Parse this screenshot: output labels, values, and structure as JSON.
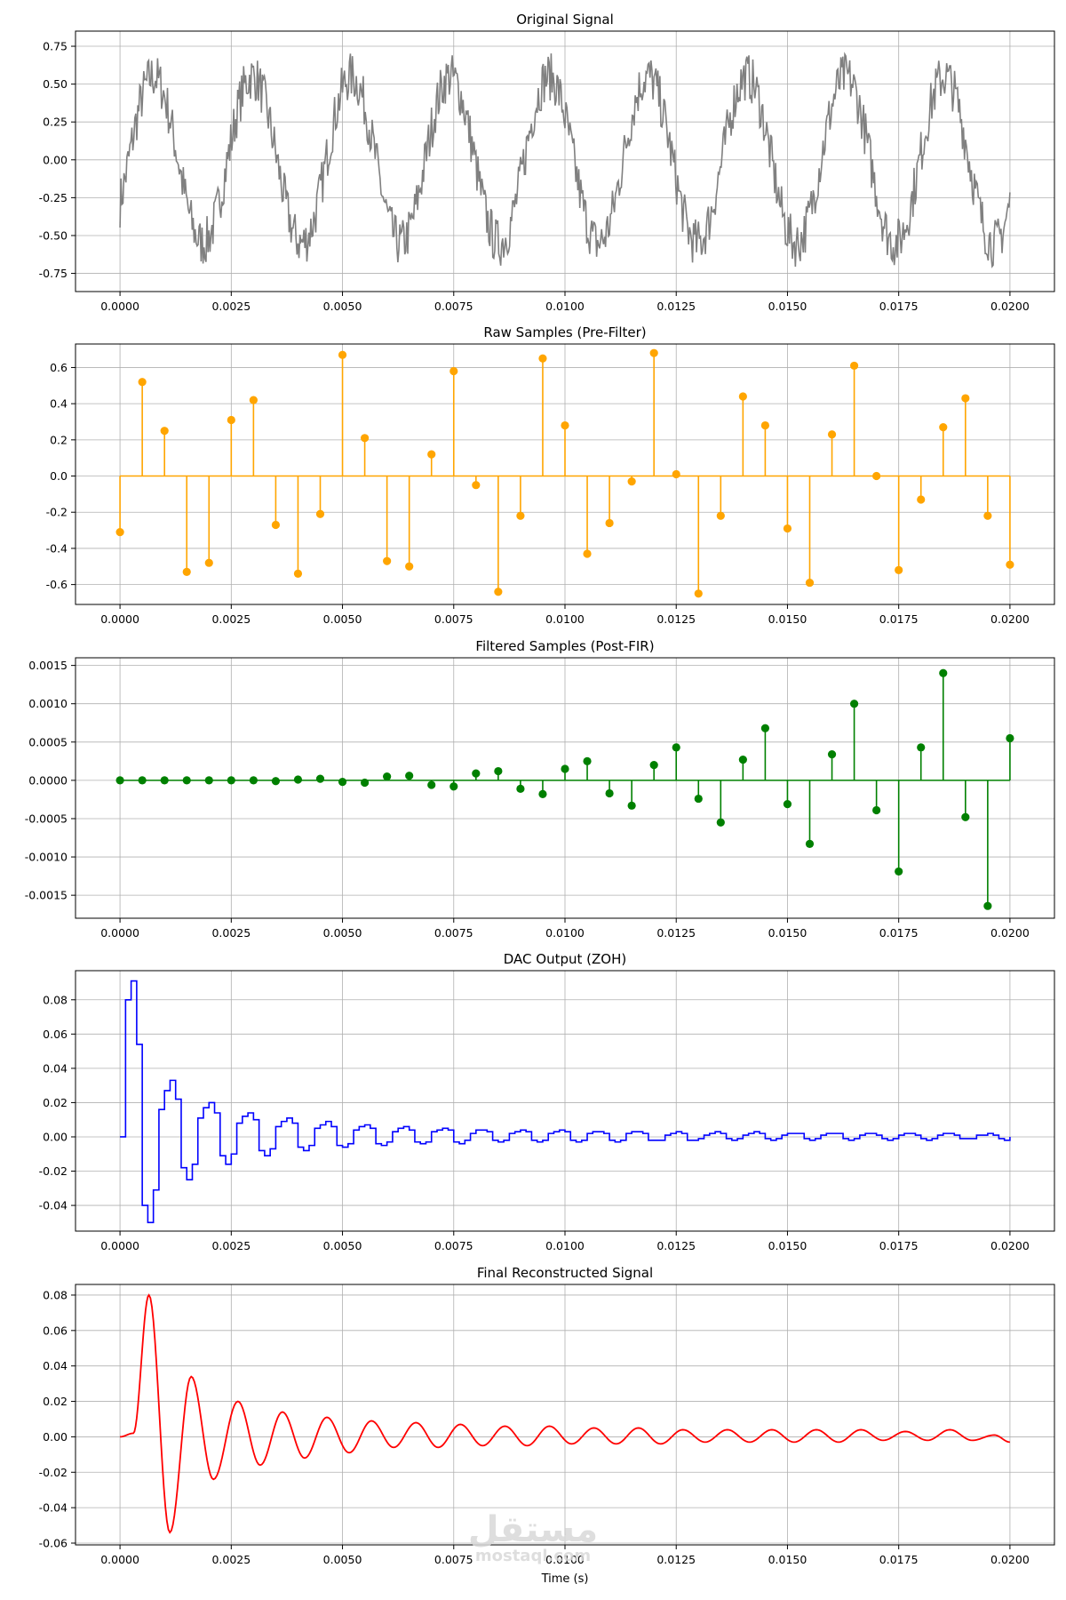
{
  "colors": {
    "original": "#808080",
    "raw": "#FFA500",
    "filtered": "#008000",
    "dac": "#0000FF",
    "reconstructed": "#FF0000",
    "grid": "#b0b0b0",
    "axes": "#000000"
  },
  "watermark": {
    "arabic": "مستقل",
    "latin": "mostaql.com"
  },
  "xlabel": "Time (s)",
  "chart_data": [
    {
      "title": "Original Signal",
      "type": "line",
      "color_key": "original",
      "xlim": [
        -0.001,
        0.021
      ],
      "ylim": [
        -0.87,
        0.85
      ],
      "yticks": [
        "0.75",
        "0.50",
        "0.25",
        "0.00",
        "-0.25",
        "-0.50",
        "-0.75"
      ],
      "xticks": [
        "0.0000",
        "0.0025",
        "0.0050",
        "0.0075",
        "0.0100",
        "0.0125",
        "0.0150",
        "0.0175",
        "0.0200"
      ],
      "grid": true,
      "signal": {
        "kind": "noisy-sine",
        "frequency_hz": 450,
        "amplitude": 0.55,
        "noise": 0.16,
        "t_start": 0,
        "t_end": 0.02
      }
    },
    {
      "title": "Raw Samples (Pre-Filter)",
      "type": "stem",
      "color_key": "raw",
      "xlim": [
        -0.001,
        0.021
      ],
      "ylim": [
        -0.71,
        0.73
      ],
      "yticks": [
        "0.6",
        "0.4",
        "0.2",
        "0.0",
        "-0.2",
        "-0.4",
        "-0.6"
      ],
      "xticks": [
        "0.0000",
        "0.0025",
        "0.0050",
        "0.0075",
        "0.0100",
        "0.0125",
        "0.0150",
        "0.0175",
        "0.0200"
      ],
      "grid": true,
      "x_step": 0.0005,
      "values": [
        -0.31,
        0.52,
        0.25,
        -0.53,
        -0.48,
        0.31,
        0.42,
        -0.27,
        -0.54,
        -0.21,
        0.67,
        0.21,
        -0.47,
        -0.5,
        0.12,
        0.58,
        -0.05,
        -0.64,
        -0.22,
        0.65,
        0.28,
        -0.43,
        -0.26,
        -0.03,
        0.68,
        0.01,
        -0.65,
        -0.22,
        0.44,
        0.28,
        -0.29,
        -0.59,
        0.23,
        0.61,
        0.0,
        -0.52,
        -0.13,
        0.27,
        0.43,
        -0.22,
        -0.49
      ]
    },
    {
      "title": "Filtered Samples (Post-FIR)",
      "type": "stem",
      "color_key": "filtered",
      "xlim": [
        -0.001,
        0.021
      ],
      "ylim": [
        -0.0018,
        0.0016
      ],
      "yticks": [
        "0.0015",
        "0.0010",
        "0.0005",
        "0.0000",
        "-0.0005",
        "-0.0010",
        "-0.0015"
      ],
      "xticks": [
        "0.0000",
        "0.0025",
        "0.0050",
        "0.0075",
        "0.0100",
        "0.0125",
        "0.0150",
        "0.0175",
        "0.0200"
      ],
      "grid": true,
      "x_step": 0.0005,
      "values": [
        0.0,
        0.0,
        0.0,
        0.0,
        0.0,
        0.0,
        0.0,
        -1e-05,
        1e-05,
        2e-05,
        -2e-05,
        -3e-05,
        5e-05,
        6e-05,
        -6e-05,
        -8e-05,
        9e-05,
        0.00012,
        -0.00011,
        -0.00018,
        0.00015,
        0.00025,
        -0.00017,
        -0.00033,
        0.0002,
        0.00043,
        -0.00024,
        -0.00055,
        0.00027,
        0.00068,
        -0.00031,
        -0.00083,
        0.00034,
        0.001,
        -0.00039,
        -0.00119,
        0.00043,
        0.0014,
        -0.00048,
        -0.00164,
        0.00055
      ]
    },
    {
      "title": "DAC Output (ZOH)",
      "type": "step",
      "color_key": "dac",
      "xlim": [
        -0.001,
        0.021
      ],
      "ylim": [
        -0.055,
        0.097
      ],
      "yticks": [
        "0.08",
        "0.06",
        "0.04",
        "0.02",
        "0.00",
        "-0.02",
        "-0.04"
      ],
      "xticks": [
        "0.0000",
        "0.0025",
        "0.0050",
        "0.0075",
        "0.0100",
        "0.0125",
        "0.0150",
        "0.0175",
        "0.0200"
      ],
      "grid": true,
      "x_step": 0.000125,
      "values": [
        0.0,
        0.08,
        0.091,
        0.054,
        -0.04,
        -0.05,
        -0.031,
        0.016,
        0.027,
        0.033,
        0.022,
        -0.018,
        -0.025,
        -0.016,
        0.011,
        0.017,
        0.02,
        0.014,
        -0.011,
        -0.016,
        -0.01,
        0.008,
        0.012,
        0.014,
        0.01,
        -0.008,
        -0.011,
        -0.007,
        0.006,
        0.009,
        0.011,
        0.008,
        -0.006,
        -0.008,
        -0.005,
        0.005,
        0.007,
        0.009,
        0.006,
        -0.005,
        -0.006,
        -0.004,
        0.004,
        0.006,
        0.007,
        0.005,
        -0.004,
        -0.005,
        -0.003,
        0.003,
        0.005,
        0.006,
        0.004,
        -0.003,
        -0.004,
        -0.003,
        0.003,
        0.004,
        0.005,
        0.004,
        -0.003,
        -0.004,
        -0.002,
        0.002,
        0.004,
        0.004,
        0.003,
        -0.002,
        -0.003,
        -0.002,
        0.002,
        0.003,
        0.004,
        0.003,
        -0.002,
        -0.003,
        -0.002,
        0.002,
        0.003,
        0.004,
        0.003,
        -0.002,
        -0.003,
        -0.002,
        0.002,
        0.003,
        0.003,
        0.002,
        -0.002,
        -0.003,
        -0.002,
        0.002,
        0.003,
        0.003,
        0.002,
        -0.002,
        -0.002,
        -0.002,
        0.001,
        0.002,
        0.003,
        0.002,
        -0.002,
        -0.002,
        -0.001,
        0.001,
        0.002,
        0.003,
        0.002,
        -0.001,
        -0.002,
        -0.001,
        0.001,
        0.002,
        0.003,
        0.002,
        -0.001,
        -0.002,
        -0.001,
        0.001,
        0.002,
        0.002,
        0.002,
        -0.001,
        -0.002,
        -0.001,
        0.001,
        0.002,
        0.002,
        0.002,
        -0.001,
        -0.002,
        -0.001,
        0.001,
        0.002,
        0.002,
        0.001,
        -0.001,
        -0.002,
        -0.001,
        0.001,
        0.002,
        0.002,
        0.001,
        -0.001,
        -0.002,
        -0.001,
        0.001,
        0.002,
        0.002,
        0.001,
        -0.001,
        -0.001,
        -0.001,
        0.001,
        0.001,
        0.002,
        0.001,
        -0.001,
        -0.002,
        0.0
      ]
    },
    {
      "title": "Final Reconstructed Signal",
      "type": "line",
      "color_key": "reconstructed",
      "xlim": [
        -0.001,
        0.021
      ],
      "ylim": [
        -0.061,
        0.086
      ],
      "yticks": [
        "0.08",
        "0.06",
        "0.04",
        "0.02",
        "0.00",
        "-0.02",
        "-0.04",
        "-0.06"
      ],
      "xticks": [
        "0.0000",
        "0.0025",
        "0.0050",
        "0.0075",
        "0.0100",
        "0.0125",
        "0.0150",
        "0.0175",
        "0.0200"
      ],
      "grid": true,
      "xlabel_key": "xlabel",
      "peaks": [
        [
          0,
          0
        ],
        [
          0.0003,
          0.002
        ],
        [
          0.00065,
          0.08
        ],
        [
          0.00112,
          -0.054
        ],
        [
          0.0016,
          0.034
        ],
        [
          0.0021,
          -0.024
        ],
        [
          0.00265,
          0.02
        ],
        [
          0.00315,
          -0.016
        ],
        [
          0.00365,
          0.014
        ],
        [
          0.00415,
          -0.012
        ],
        [
          0.00465,
          0.011
        ],
        [
          0.00515,
          -0.009
        ],
        [
          0.00565,
          0.009
        ],
        [
          0.00615,
          -0.006
        ],
        [
          0.00665,
          0.008
        ],
        [
          0.00715,
          -0.006
        ],
        [
          0.00765,
          0.007
        ],
        [
          0.00815,
          -0.005
        ],
        [
          0.00865,
          0.006
        ],
        [
          0.00915,
          -0.005
        ],
        [
          0.00965,
          0.006
        ],
        [
          0.01015,
          -0.004
        ],
        [
          0.01065,
          0.005
        ],
        [
          0.01115,
          -0.004
        ],
        [
          0.01165,
          0.005
        ],
        [
          0.01215,
          -0.004
        ],
        [
          0.01265,
          0.004
        ],
        [
          0.01315,
          -0.003
        ],
        [
          0.01365,
          0.004
        ],
        [
          0.01415,
          -0.003
        ],
        [
          0.01465,
          0.004
        ],
        [
          0.01515,
          -0.003
        ],
        [
          0.01565,
          0.004
        ],
        [
          0.01615,
          -0.003
        ],
        [
          0.01665,
          0.004
        ],
        [
          0.01715,
          -0.002
        ],
        [
          0.01765,
          0.003
        ],
        [
          0.01815,
          -0.002
        ],
        [
          0.01865,
          0.004
        ],
        [
          0.01915,
          -0.002
        ],
        [
          0.01965,
          0.001
        ],
        [
          0.02,
          -0.003
        ]
      ]
    }
  ]
}
